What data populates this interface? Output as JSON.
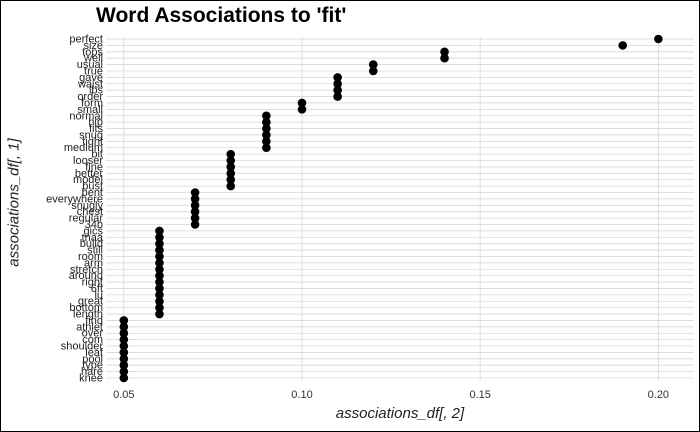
{
  "chart_data": {
    "type": "scatter",
    "title": "Word Associations to 'fit'",
    "xlabel": "associations_df[, 2]",
    "ylabel": "associations_df[, 1]",
    "xlim": [
      0.045,
      0.21
    ],
    "x_ticks": [
      "0.05",
      "0.10",
      "0.15",
      "0.20"
    ],
    "x_tick_values": [
      0.05,
      0.1,
      0.15,
      0.2
    ],
    "grid": true,
    "point_color": "#000000",
    "points": [
      {
        "word": "perfect",
        "value": 0.2
      },
      {
        "word": "size",
        "value": 0.19
      },
      {
        "word": "tops",
        "value": 0.14
      },
      {
        "word": "well",
        "value": 0.14
      },
      {
        "word": "usual",
        "value": 0.12
      },
      {
        "word": "true",
        "value": 0.12
      },
      {
        "word": "gave",
        "value": 0.11
      },
      {
        "word": "waist",
        "value": 0.11
      },
      {
        "word": "lbs",
        "value": 0.11
      },
      {
        "word": "order",
        "value": 0.11
      },
      {
        "word": "form",
        "value": 0.1
      },
      {
        "word": "small",
        "value": 0.1
      },
      {
        "word": "normal",
        "value": 0.09
      },
      {
        "word": "hip",
        "value": 0.09
      },
      {
        "word": "fits",
        "value": 0.09
      },
      {
        "word": "snug",
        "value": 0.09
      },
      {
        "word": "tight",
        "value": 0.09
      },
      {
        "word": "medium",
        "value": 0.09
      },
      {
        "word": "bit",
        "value": 0.08
      },
      {
        "word": "looser",
        "value": 0.08
      },
      {
        "word": "fine",
        "value": 0.08
      },
      {
        "word": "better",
        "value": 0.08
      },
      {
        "word": "model",
        "value": 0.08
      },
      {
        "word": "bust",
        "value": 0.08
      },
      {
        "word": "bent",
        "value": 0.07
      },
      {
        "word": "everywhere",
        "value": 0.07
      },
      {
        "word": "snugly",
        "value": 0.07
      },
      {
        "word": "chest",
        "value": 0.07
      },
      {
        "word": "regular",
        "value": 0.07
      },
      {
        "word": "34b",
        "value": 0.07
      },
      {
        "word": "gics",
        "value": 0.06
      },
      {
        "word": "tnaa",
        "value": 0.06
      },
      {
        "word": "build",
        "value": 0.06
      },
      {
        "word": "still",
        "value": 0.06
      },
      {
        "word": "room",
        "value": 0.06
      },
      {
        "word": "arm",
        "value": 0.06
      },
      {
        "word": "stretch",
        "value": 0.06
      },
      {
        "word": "around",
        "value": 0.06
      },
      {
        "word": "right",
        "value": 0.06
      },
      {
        "word": "6ft",
        "value": 0.06
      },
      {
        "word": "lu",
        "value": 0.06
      },
      {
        "word": "great",
        "value": 0.06
      },
      {
        "word": "bottom",
        "value": 0.06
      },
      {
        "word": "length",
        "value": 0.06
      },
      {
        "word": "find",
        "value": 0.05
      },
      {
        "word": "athlet",
        "value": 0.05
      },
      {
        "word": "over",
        "value": 0.05
      },
      {
        "word": "com",
        "value": 0.05
      },
      {
        "word": "shoulder",
        "value": 0.05
      },
      {
        "word": "leaf",
        "value": 0.05
      },
      {
        "word": "pool",
        "value": 0.05
      },
      {
        "word": "type",
        "value": 0.05
      },
      {
        "word": "hare",
        "value": 0.05
      },
      {
        "word": "knee",
        "value": 0.05
      }
    ]
  }
}
